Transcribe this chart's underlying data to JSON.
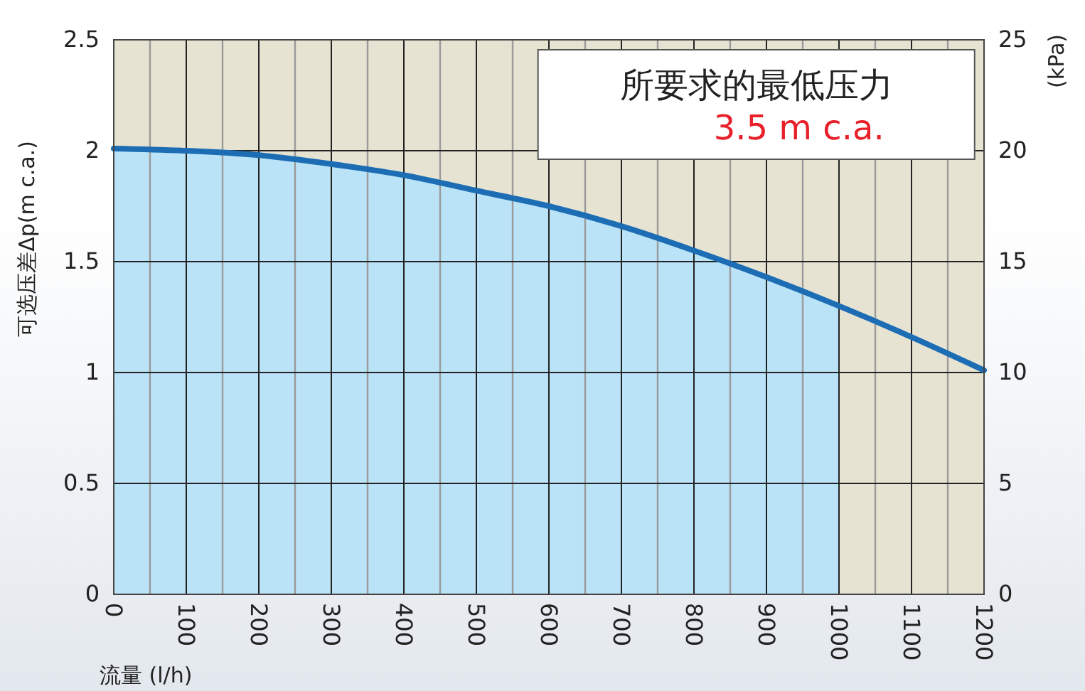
{
  "chart_data": {
    "type": "line",
    "xlabel": "流量 (l/h)",
    "ylabel": "可选压差Δp(m c.a.)",
    "y2label": "(kPa)",
    "annotations": [
      "所要求的最低压力",
      "3.5 m c.a."
    ],
    "series": [
      {
        "type": "area",
        "color": "#bae3f7",
        "x": [
          0,
          100,
          200,
          300,
          400,
          500,
          600,
          700,
          800,
          900,
          1000
        ],
        "values": [
          2.01,
          2.0,
          1.98,
          1.94,
          1.89,
          1.82,
          1.75,
          1.66,
          1.55,
          1.43,
          1.3
        ]
      },
      {
        "color": "#1c6db4",
        "x": [
          0,
          100,
          200,
          300,
          400,
          500,
          600,
          700,
          800,
          900,
          1000,
          1100,
          1200
        ],
        "values": [
          2.01,
          2.0,
          1.98,
          1.94,
          1.89,
          1.82,
          1.75,
          1.66,
          1.55,
          1.43,
          1.3,
          1.16,
          1.01
        ]
      }
    ],
    "xlim": [
      0,
      1200
    ],
    "xticks": [
      0,
      {
        "value": 50,
        "label": null
      },
      100,
      {
        "value": 150,
        "label": null
      },
      200,
      {
        "value": 250,
        "label": null
      },
      300,
      {
        "value": 350,
        "label": null
      },
      400,
      {
        "value": 450,
        "label": null
      },
      500,
      {
        "value": 550,
        "label": null
      },
      600,
      {
        "value": 650,
        "label": null
      },
      700,
      {
        "value": 750,
        "label": null
      },
      800,
      {
        "value": 850,
        "label": null
      },
      900,
      {
        "value": 950,
        "label": null
      },
      1000,
      {
        "value": 1050,
        "label": null
      },
      1100,
      {
        "value": 1150,
        "label": null
      },
      1200
    ],
    "ylim": [
      0,
      2.5
    ],
    "yticks": [
      0,
      0.5,
      1,
      1.5,
      2,
      2.5
    ],
    "y2lim": [
      0,
      25
    ],
    "y2ticks": [
      0,
      5,
      10,
      15,
      20,
      25
    ],
    "grid": true,
    "marker": "none",
    "line_style": "solid"
  }
}
